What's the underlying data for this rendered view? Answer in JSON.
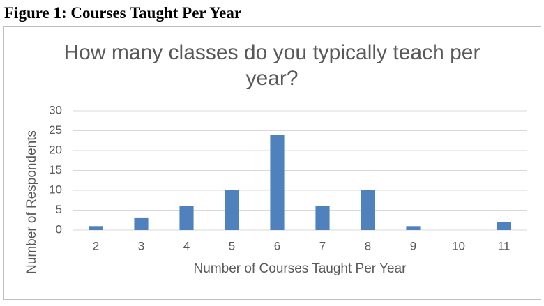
{
  "caption": "Figure 1: Courses Taught Per Year",
  "chart_data": {
    "type": "bar",
    "title": "How many classes do you typically teach per year?",
    "x_label": "Number of Courses Taught Per Year",
    "y_label": "Number of Respondents",
    "categories": [
      2,
      3,
      4,
      5,
      6,
      7,
      8,
      9,
      10,
      11
    ],
    "values": [
      1,
      3,
      6,
      10,
      24,
      6,
      10,
      1,
      0,
      2
    ],
    "color": "#4f81bd",
    "ylim": [
      0,
      30
    ],
    "yticks": [
      0,
      5,
      10,
      15,
      20,
      25,
      30
    ],
    "grid": true
  }
}
